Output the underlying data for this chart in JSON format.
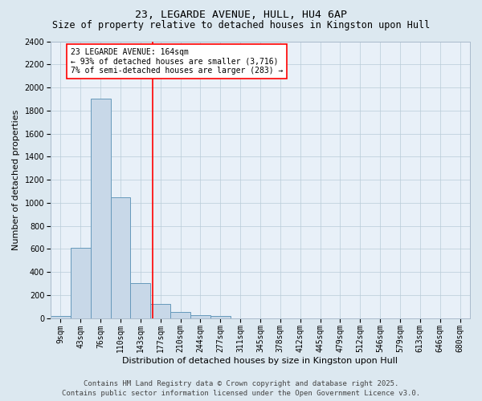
{
  "title_line1": "23, LEGARDE AVENUE, HULL, HU4 6AP",
  "title_line2": "Size of property relative to detached houses in Kingston upon Hull",
  "xlabel": "Distribution of detached houses by size in Kingston upon Hull",
  "ylabel": "Number of detached properties",
  "categories": [
    "9sqm",
    "43sqm",
    "76sqm",
    "110sqm",
    "143sqm",
    "177sqm",
    "210sqm",
    "244sqm",
    "277sqm",
    "311sqm",
    "345sqm",
    "378sqm",
    "412sqm",
    "445sqm",
    "479sqm",
    "512sqm",
    "546sqm",
    "579sqm",
    "613sqm",
    "646sqm",
    "680sqm"
  ],
  "bar_values": [
    15,
    610,
    1900,
    1050,
    300,
    125,
    50,
    25,
    15,
    0,
    0,
    0,
    0,
    0,
    0,
    0,
    0,
    0,
    0,
    0,
    0
  ],
  "bar_color": "#c8d8e8",
  "bar_edge_color": "#6699bb",
  "subject_line_color": "red",
  "ylim": [
    0,
    2400
  ],
  "yticks": [
    0,
    200,
    400,
    600,
    800,
    1000,
    1200,
    1400,
    1600,
    1800,
    2000,
    2200,
    2400
  ],
  "annotation_title": "23 LEGARDE AVENUE: 164sqm",
  "annotation_line2": "← 93% of detached houses are smaller (3,716)",
  "annotation_line3": "7% of semi-detached houses are larger (283) →",
  "footer_line1": "Contains HM Land Registry data © Crown copyright and database right 2025.",
  "footer_line2": "Contains public sector information licensed under the Open Government Licence v3.0.",
  "bg_color": "#dce8f0",
  "plot_bg_color": "#e8f0f8",
  "grid_color": "#b8ccd8",
  "title_fontsize": 9.5,
  "subtitle_fontsize": 8.5,
  "tick_fontsize": 7,
  "label_fontsize": 8,
  "annotation_fontsize": 7,
  "footer_fontsize": 6.5
}
